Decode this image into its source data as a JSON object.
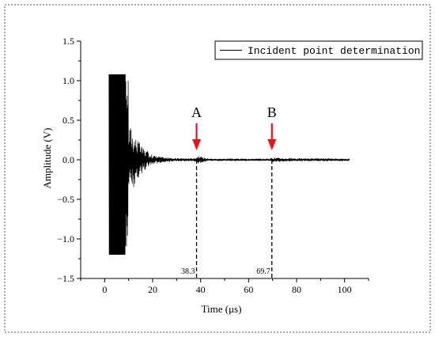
{
  "chart_data": {
    "type": "line",
    "xlabel": "Time (μs)",
    "ylabel": "Amplitude (V)",
    "xlim": [
      -10,
      110
    ],
    "ylim": [
      -1.5,
      1.5
    ],
    "x_ticks": [
      0,
      20,
      40,
      60,
      80,
      100
    ],
    "y_ticks": [
      -1.5,
      -1.0,
      -0.5,
      0.0,
      0.5,
      1.0,
      1.5
    ],
    "x_tick_labels": [
      "0",
      "20",
      "40",
      "60",
      "80",
      "100"
    ],
    "y_tick_labels": [
      "−1.5",
      "−1.0",
      "−0.5",
      "0.0",
      "0.5",
      "1.0",
      "1.5"
    ],
    "legend": {
      "placement": "top-right",
      "entries": [
        "Incident point determination"
      ]
    },
    "grid": false,
    "series": [
      {
        "name": "Incident point determination",
        "color": "#000000",
        "signal": {
          "x_start": 1.8,
          "x_end": 102,
          "clipped_max": 1.08,
          "clipped_min": -1.2,
          "clipped_range": [
            1.8,
            9.8
          ],
          "envelope": [
            [
              1.8,
              1.08
            ],
            [
              10,
              0.5
            ],
            [
              12,
              0.35
            ],
            [
              14,
              0.25
            ],
            [
              16,
              0.15
            ],
            [
              20,
              0.06
            ],
            [
              25,
              0.03
            ],
            [
              30,
              0.02
            ],
            [
              37,
              0.02
            ],
            [
              39,
              0.05
            ],
            [
              41,
              0.03
            ],
            [
              45,
              0.015
            ],
            [
              60,
              0.015
            ],
            [
              68,
              0.015
            ],
            [
              70.5,
              0.03
            ],
            [
              75,
              0.02
            ],
            [
              102,
              0.015
            ]
          ]
        }
      }
    ],
    "markers": [
      {
        "label": "A",
        "x": 38.3,
        "value_label": "38.3",
        "arrow_color": "#e8121b"
      },
      {
        "label": "B",
        "x": 69.7,
        "value_label": "69.7",
        "arrow_color": "#e8121b"
      }
    ]
  }
}
